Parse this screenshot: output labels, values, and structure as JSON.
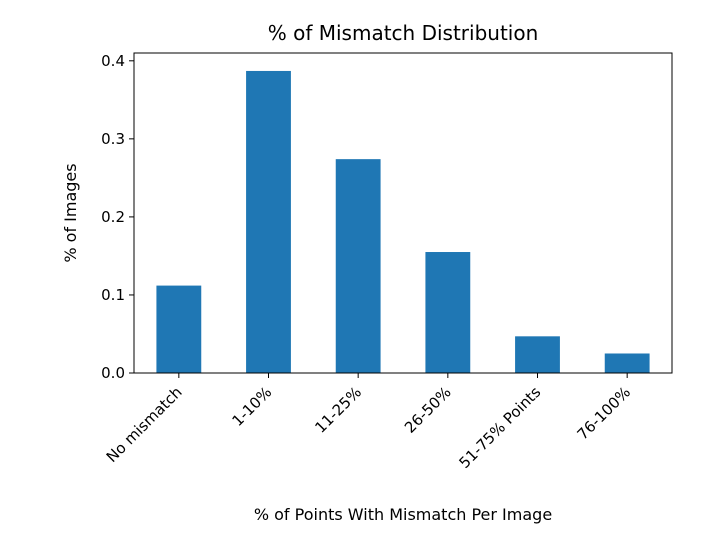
{
  "chart_data": {
    "type": "bar",
    "title": "% of Mismatch Distribution",
    "xlabel": "% of Points With Mismatch Per Image",
    "ylabel": "% of Images",
    "categories": [
      "No mismatch",
      "1-10%",
      "11-25%",
      "26-50%",
      "51-75% Points",
      "76-100%"
    ],
    "values": [
      0.112,
      0.387,
      0.274,
      0.155,
      0.047,
      0.025
    ],
    "ylim": [
      0,
      0.41
    ],
    "yticks": [
      "0.0",
      "0.1",
      "0.2",
      "0.3",
      "0.4"
    ],
    "grid": false,
    "bar_color": "#1f77b4"
  }
}
